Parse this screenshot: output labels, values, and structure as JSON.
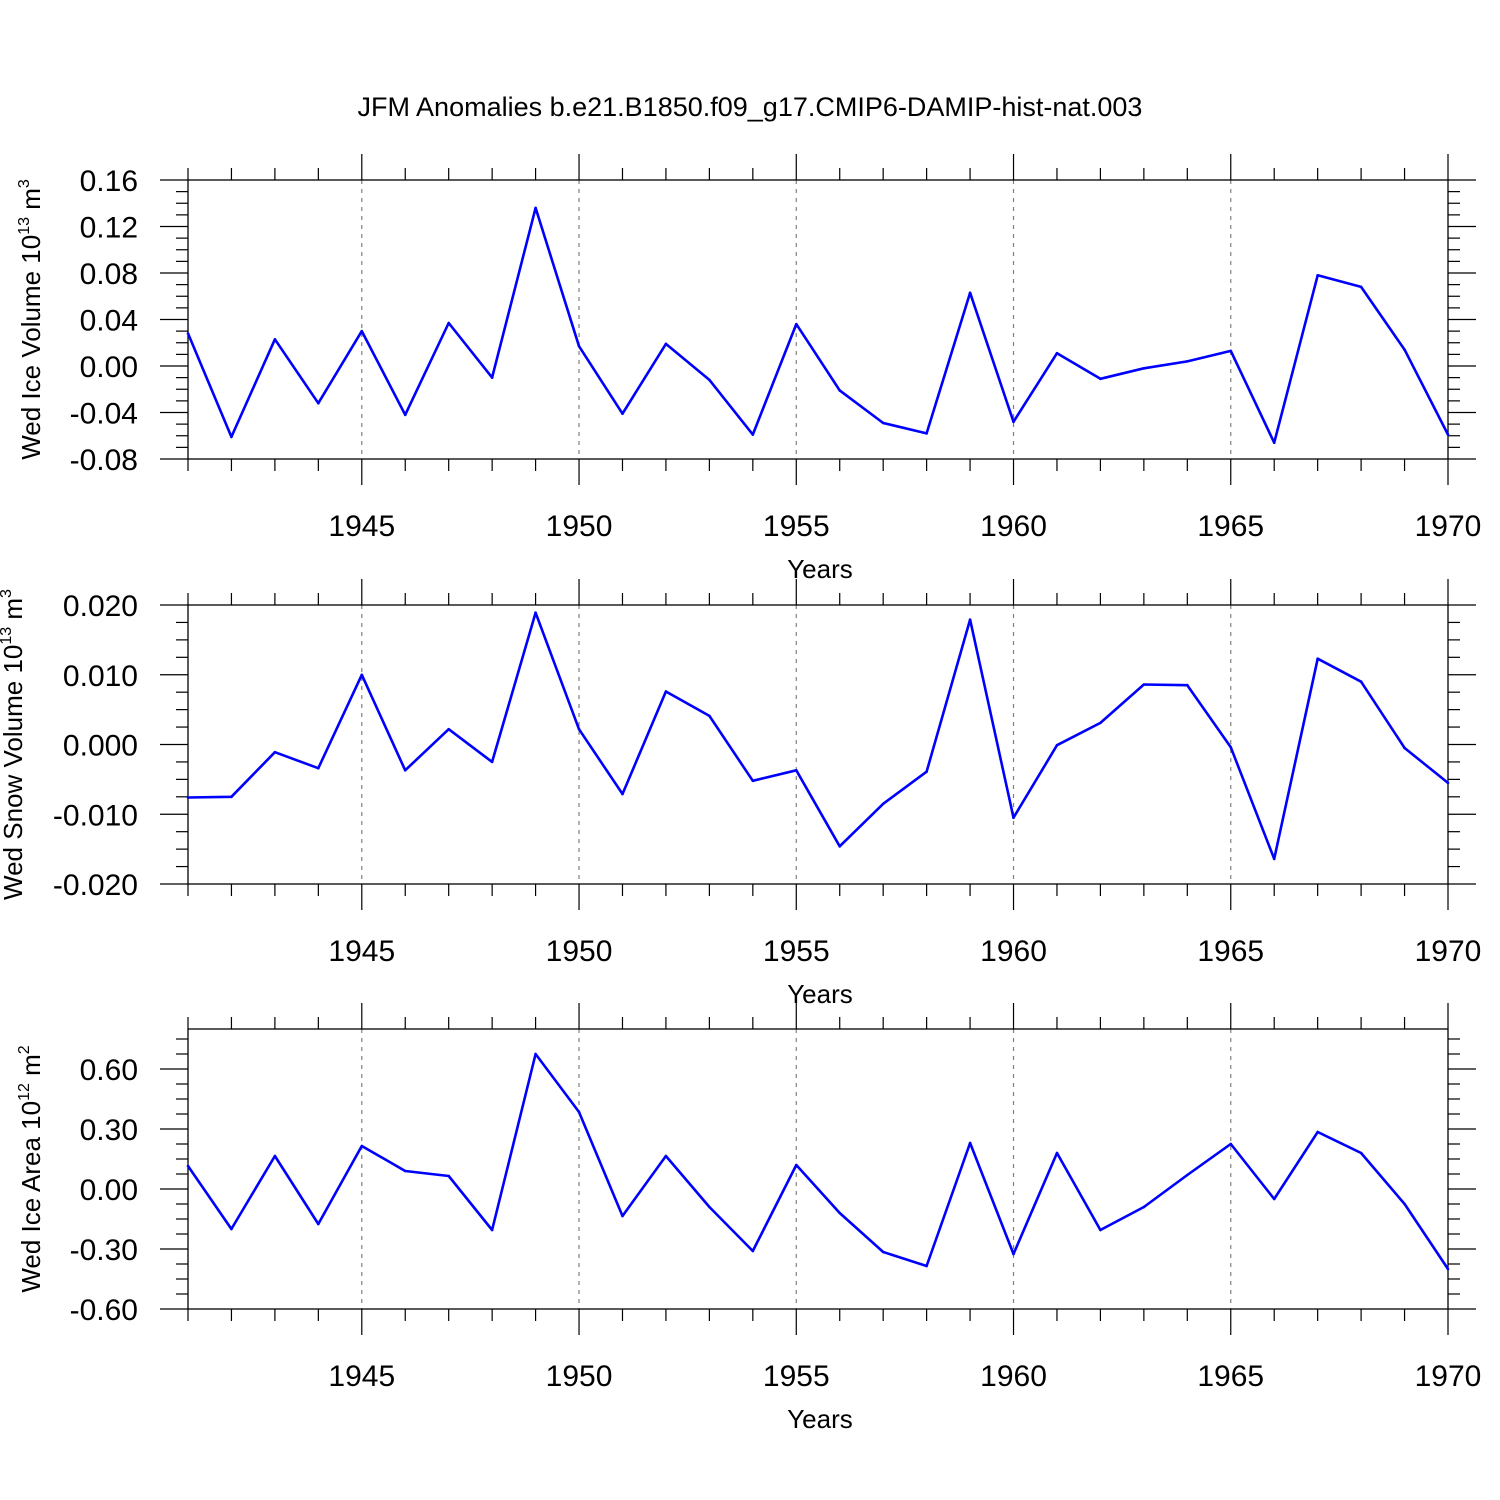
{
  "title": "JFM Anomalies b.e21.B1850.f09_g17.CMIP6-DAMIP-hist-nat.003",
  "colors": {
    "line": "#0000ff",
    "axis": "#000000",
    "grid": "#808080"
  },
  "chart_data": [
    {
      "type": "line",
      "ylabel": "Wed Ice Volume 10",
      "ylabel_exp": "13",
      "ylabel_unit": " m",
      "ylabel_unit_exp": "3",
      "xlabel": "Years",
      "xlim": [
        1941,
        1970
      ],
      "ylim": [
        -0.08,
        0.16
      ],
      "yticks": [
        "-0.08",
        "-0.04",
        "0.00",
        "0.04",
        "0.08",
        "0.12",
        "0.16"
      ],
      "ytick_values": [
        -0.08,
        -0.04,
        0.0,
        0.04,
        0.08,
        0.12,
        0.16
      ],
      "xticks": [
        "1945",
        "1950",
        "1955",
        "1960",
        "1965",
        "1970"
      ],
      "xtick_values": [
        1945,
        1950,
        1955,
        1960,
        1965,
        1970
      ],
      "x": [
        1941,
        1942,
        1943,
        1944,
        1945,
        1946,
        1947,
        1948,
        1949,
        1950,
        1951,
        1952,
        1953,
        1954,
        1955,
        1956,
        1957,
        1958,
        1959,
        1960,
        1961,
        1962,
        1963,
        1964,
        1965,
        1966,
        1967,
        1968,
        1969,
        1970
      ],
      "values": [
        0.028,
        -0.061,
        0.023,
        -0.032,
        0.03,
        -0.042,
        0.037,
        -0.01,
        0.136,
        0.017,
        -0.041,
        0.019,
        -0.012,
        -0.059,
        0.036,
        -0.021,
        -0.049,
        -0.058,
        0.063,
        -0.048,
        0.011,
        -0.011,
        -0.002,
        0.004,
        0.013,
        -0.066,
        0.078,
        0.068,
        0.014,
        -0.059
      ]
    },
    {
      "type": "line",
      "ylabel": "Wed Snow Volume 10",
      "ylabel_exp": "13",
      "ylabel_unit": " m",
      "ylabel_unit_exp": "3",
      "xlabel": "Years",
      "xlim": [
        1941,
        1970
      ],
      "ylim": [
        -0.02,
        0.02
      ],
      "yticks": [
        "-0.020",
        "-0.010",
        "0.000",
        "0.010",
        "0.020"
      ],
      "ytick_values": [
        -0.02,
        -0.01,
        0.0,
        0.01,
        0.02
      ],
      "xticks": [
        "1945",
        "1950",
        "1955",
        "1960",
        "1965",
        "1970"
      ],
      "xtick_values": [
        1945,
        1950,
        1955,
        1960,
        1965,
        1970
      ],
      "x": [
        1941,
        1942,
        1943,
        1944,
        1945,
        1946,
        1947,
        1948,
        1949,
        1950,
        1951,
        1952,
        1953,
        1954,
        1955,
        1956,
        1957,
        1958,
        1959,
        1960,
        1961,
        1962,
        1963,
        1964,
        1965,
        1966,
        1967,
        1968,
        1969,
        1970
      ],
      "values": [
        -0.0076,
        -0.0075,
        -0.0011,
        -0.0034,
        0.01,
        -0.0037,
        0.0022,
        -0.0025,
        0.0189,
        0.0022,
        -0.0071,
        0.0076,
        0.0041,
        -0.0052,
        -0.0037,
        -0.0146,
        -0.0085,
        -0.0039,
        0.0179,
        -0.0105,
        -0.0001,
        0.0031,
        0.0086,
        0.0085,
        -0.0004,
        -0.0164,
        0.0123,
        0.009,
        -0.0005,
        -0.0055
      ]
    },
    {
      "type": "line",
      "ylabel": "Wed Ice Area 10",
      "ylabel_exp": "12",
      "ylabel_unit": " m",
      "ylabel_unit_exp": "2",
      "xlabel": "Years",
      "xlim": [
        1941,
        1970
      ],
      "ylim": [
        -0.6,
        0.8
      ],
      "yticks": [
        "-0.60",
        "-0.30",
        "0.00",
        "0.30",
        "0.60"
      ],
      "ytick_values": [
        -0.6,
        -0.3,
        0.0,
        0.3,
        0.6
      ],
      "xticks": [
        "1945",
        "1950",
        "1955",
        "1960",
        "1965",
        "1970"
      ],
      "xtick_values": [
        1945,
        1950,
        1955,
        1960,
        1965,
        1970
      ],
      "x": [
        1941,
        1942,
        1943,
        1944,
        1945,
        1946,
        1947,
        1948,
        1949,
        1950,
        1951,
        1952,
        1953,
        1954,
        1955,
        1956,
        1957,
        1958,
        1959,
        1960,
        1961,
        1962,
        1963,
        1964,
        1965,
        1966,
        1967,
        1968,
        1969,
        1970
      ],
      "values": [
        0.115,
        -0.2,
        0.165,
        -0.175,
        0.215,
        0.09,
        0.065,
        -0.205,
        0.675,
        0.385,
        -0.135,
        0.165,
        -0.09,
        -0.31,
        0.12,
        -0.12,
        -0.315,
        -0.385,
        0.23,
        -0.325,
        0.18,
        -0.205,
        -0.09,
        0.07,
        0.225,
        -0.05,
        0.285,
        0.18,
        -0.075,
        -0.4
      ]
    }
  ]
}
